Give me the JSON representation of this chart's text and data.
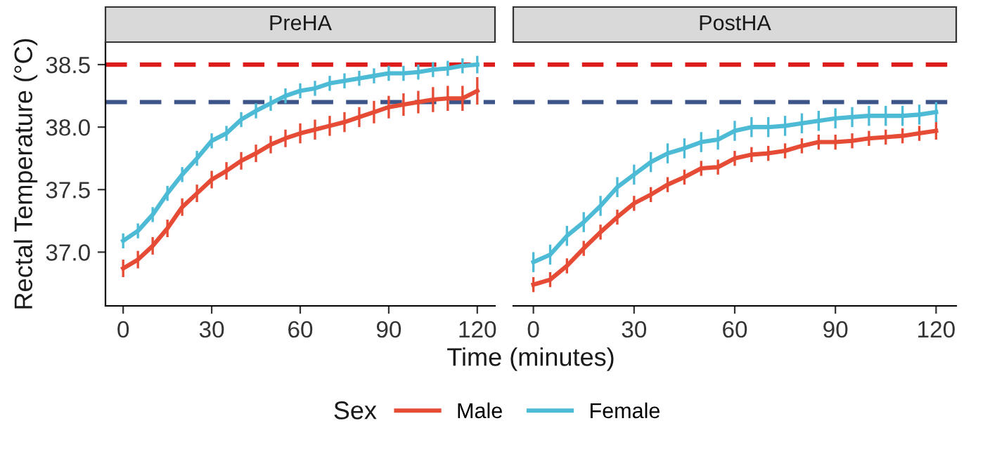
{
  "chart_data": [
    {
      "type": "line",
      "title": "PreHA",
      "xlabel": "Time (minutes)",
      "ylabel": "Rectal Temperature (°C)",
      "legend_title": "Sex",
      "legend": "bottom",
      "x": [
        0,
        5,
        10,
        15,
        20,
        25,
        30,
        35,
        40,
        45,
        50,
        55,
        60,
        65,
        70,
        75,
        80,
        85,
        90,
        95,
        100,
        105,
        110,
        115,
        120
      ],
      "xlim": [
        -6,
        126
      ],
      "xticks": [
        0,
        30,
        60,
        90,
        120
      ],
      "ylim": [
        36.57,
        38.68
      ],
      "yticks": [
        {
          "value": 37.0,
          "label": "37.0"
        },
        {
          "value": 37.5,
          "label": "37.5"
        },
        {
          "value": 38.0,
          "label": "38.0"
        },
        {
          "value": 38.5,
          "label": "38.5"
        }
      ],
      "grid": false,
      "series": [
        {
          "name": "Male",
          "color": "#e64b35",
          "values": [
            36.87,
            36.94,
            37.05,
            37.19,
            37.36,
            37.47,
            37.58,
            37.65,
            37.73,
            37.79,
            37.86,
            37.91,
            37.95,
            37.98,
            38.01,
            38.04,
            38.08,
            38.12,
            38.16,
            38.18,
            38.2,
            38.22,
            38.23,
            38.23,
            38.29
          ],
          "errors": [
            0.07,
            0.07,
            0.07,
            0.07,
            0.07,
            0.07,
            0.07,
            0.07,
            0.07,
            0.07,
            0.07,
            0.07,
            0.08,
            0.08,
            0.08,
            0.08,
            0.08,
            0.09,
            0.09,
            0.09,
            0.09,
            0.1,
            0.1,
            0.1,
            0.11
          ]
        },
        {
          "name": "Female",
          "color": "#4dbbd5",
          "values": [
            37.09,
            37.17,
            37.3,
            37.47,
            37.62,
            37.75,
            37.89,
            37.95,
            38.06,
            38.13,
            38.19,
            38.25,
            38.29,
            38.31,
            38.35,
            38.37,
            38.39,
            38.41,
            38.43,
            38.43,
            38.44,
            38.46,
            38.47,
            38.49,
            38.5
          ],
          "errors": [
            0.06,
            0.06,
            0.06,
            0.06,
            0.06,
            0.06,
            0.06,
            0.06,
            0.06,
            0.06,
            0.06,
            0.06,
            0.06,
            0.06,
            0.06,
            0.06,
            0.06,
            0.06,
            0.06,
            0.06,
            0.06,
            0.06,
            0.06,
            0.06,
            0.07
          ]
        }
      ],
      "ref_lines": [
        {
          "axis": "y",
          "value": 38.5,
          "color": "#dd1c1c",
          "line_style": "dashed"
        },
        {
          "axis": "y",
          "value": 38.2,
          "color": "#3c5488",
          "line_style": "dashed"
        }
      ]
    },
    {
      "type": "line",
      "title": "PostHA",
      "tick_labels": "x",
      "x": [
        0,
        5,
        10,
        15,
        20,
        25,
        30,
        35,
        40,
        45,
        50,
        55,
        60,
        65,
        70,
        75,
        80,
        85,
        90,
        95,
        100,
        105,
        110,
        115,
        120
      ],
      "xlim": [
        -6,
        126
      ],
      "xticks": [
        0,
        30,
        60,
        90,
        120
      ],
      "ylim": [
        36.57,
        38.68
      ],
      "grid": false,
      "series": [
        {
          "color": "#e64b35",
          "values": [
            36.74,
            36.78,
            36.89,
            37.03,
            37.16,
            37.28,
            37.39,
            37.46,
            37.54,
            37.6,
            37.67,
            37.68,
            37.75,
            37.78,
            37.79,
            37.81,
            37.85,
            37.88,
            37.88,
            37.89,
            37.91,
            37.92,
            37.93,
            37.95,
            37.97
          ],
          "errors": [
            0.06,
            0.06,
            0.06,
            0.06,
            0.06,
            0.06,
            0.06,
            0.06,
            0.06,
            0.06,
            0.06,
            0.06,
            0.06,
            0.06,
            0.06,
            0.06,
            0.06,
            0.06,
            0.06,
            0.06,
            0.06,
            0.06,
            0.06,
            0.06,
            0.07
          ]
        },
        {
          "color": "#4dbbd5",
          "values": [
            36.92,
            36.98,
            37.13,
            37.24,
            37.37,
            37.52,
            37.62,
            37.72,
            37.79,
            37.83,
            37.88,
            37.9,
            37.97,
            38.0,
            38.0,
            38.01,
            38.03,
            38.05,
            38.07,
            38.08,
            38.09,
            38.09,
            38.09,
            38.1,
            38.12
          ],
          "errors": [
            0.08,
            0.08,
            0.08,
            0.08,
            0.08,
            0.08,
            0.08,
            0.08,
            0.08,
            0.08,
            0.08,
            0.08,
            0.08,
            0.08,
            0.08,
            0.08,
            0.08,
            0.08,
            0.08,
            0.08,
            0.08,
            0.08,
            0.08,
            0.08,
            0.08
          ]
        }
      ],
      "ref_lines": [
        {
          "axis": "y",
          "value": 38.5,
          "color": "#dd1c1c",
          "line_style": "dashed"
        },
        {
          "axis": "y",
          "value": 38.2,
          "color": "#3c5488",
          "line_style": "dashed"
        }
      ]
    }
  ]
}
